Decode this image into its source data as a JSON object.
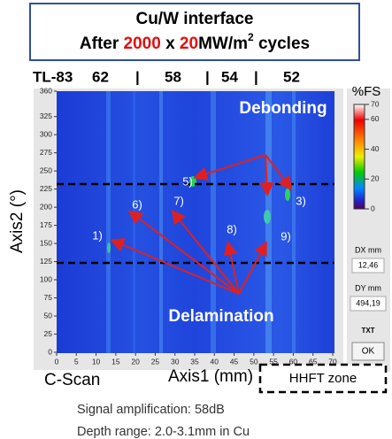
{
  "title": {
    "line1": "Cu/W interface",
    "line2": [
      "After ",
      "2000",
      " x ",
      "20",
      "MW/m",
      "2",
      " cycles"
    ]
  },
  "specimen_labels": [
    "TL-83",
    "62",
    "|",
    "58",
    "|",
    "54",
    "|",
    "52"
  ],
  "cscan": {
    "y_ticks": [
      360,
      325,
      300,
      275,
      250,
      225,
      200,
      175,
      150,
      125,
      100,
      75,
      50,
      25,
      0
    ],
    "x_ticks": [
      0,
      5,
      10,
      15,
      20,
      25,
      30,
      35,
      40,
      45,
      50,
      55,
      60,
      65,
      70
    ],
    "y_label": "Axis2 (°)",
    "x_label": "Axis1 (mm)",
    "debonding": "Debonding",
    "delamination": "Delamination",
    "regions": [
      "1)",
      "3)",
      "5)",
      "6)",
      "7)",
      "8)",
      "9)"
    ]
  },
  "color_scale": {
    "label": "%FS",
    "ticks": [
      70,
      60,
      40,
      20,
      0
    ]
  },
  "panel": {
    "dx_label": "DX mm",
    "dx_value": "12,46",
    "dy_label": "DY mm",
    "dy_value": "494,19",
    "txt": "TXT",
    "ok": "OK"
  },
  "caption": "C-Scan",
  "zone": "HHFT zone",
  "notes": [
    "Signal amplification: 58dB",
    "Depth range: 2.0-3.1mm in Cu"
  ]
}
